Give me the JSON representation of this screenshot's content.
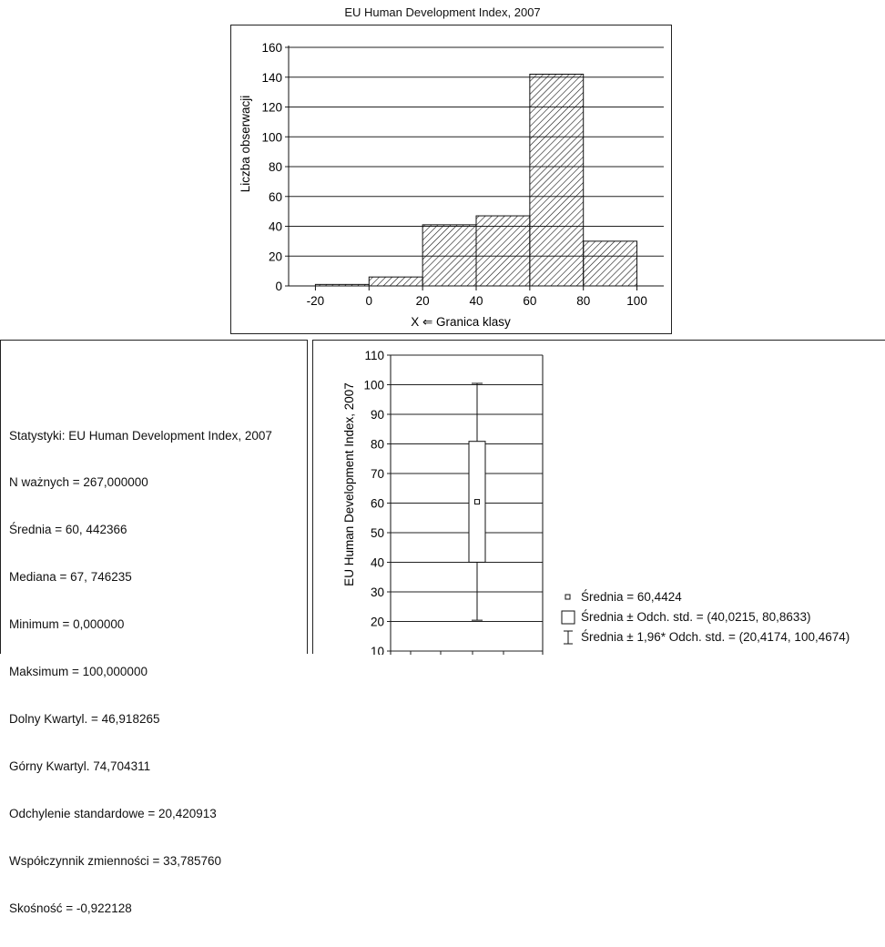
{
  "chart_data": [
    {
      "type": "bar",
      "title": "EU Human Development Index, 2007",
      "xlabel": "X ⇐ Granica klasy",
      "ylabel": "Liczba obserwacji",
      "bin_edges": [
        -20,
        0,
        20,
        40,
        60,
        80,
        100
      ],
      "values": [
        1,
        6,
        41,
        47,
        142,
        30
      ],
      "xticks": [
        -20,
        0,
        20,
        40,
        60,
        80,
        100
      ],
      "yticks": [
        0,
        20,
        40,
        60,
        80,
        100,
        120,
        140,
        160
      ],
      "ylim": [
        0,
        160
      ],
      "xlim": [
        -30,
        110
      ],
      "grid": true,
      "fill": "diagonal-hatch"
    },
    {
      "type": "box",
      "ylabel": "EU Human Development Index, 2007",
      "ylim": [
        10,
        110
      ],
      "yticks": [
        10,
        20,
        30,
        40,
        50,
        60,
        70,
        80,
        90,
        100,
        110
      ],
      "grid": true,
      "mean": 60.4424,
      "box": [
        40.0215,
        80.8633
      ],
      "whiskers": [
        20.4174,
        100.4674
      ],
      "legend": [
        {
          "symbol": "small-square",
          "text": "Średnia = 60,4424"
        },
        {
          "symbol": "box",
          "text": "Średnia ± Odch. std. = (40,0215, 80,8633)"
        },
        {
          "symbol": "whisker",
          "text": "Średnia ± 1,96* Odch. std. = (20,4174, 100,4674)"
        }
      ]
    }
  ],
  "stats": {
    "lines": [
      "Statystyki: EU Human Development Index, 2007",
      "N ważnych = 267,000000",
      "Średnia = 60, 442366",
      "Mediana = 67, 746235",
      "Minimum = 0,000000",
      "Maksimum = 100,000000",
      "Dolny Kwartyl. = 46,918265",
      "Górny Kwartyl. 74,704311",
      "Odchylenie standardowe = 20,420913",
      "Współczynnik zmienności = 33,785760",
      "Skośność = -0,922128"
    ]
  },
  "colors": {
    "ink": "#111111",
    "grid": "#222222",
    "fill": "#ffffff"
  }
}
